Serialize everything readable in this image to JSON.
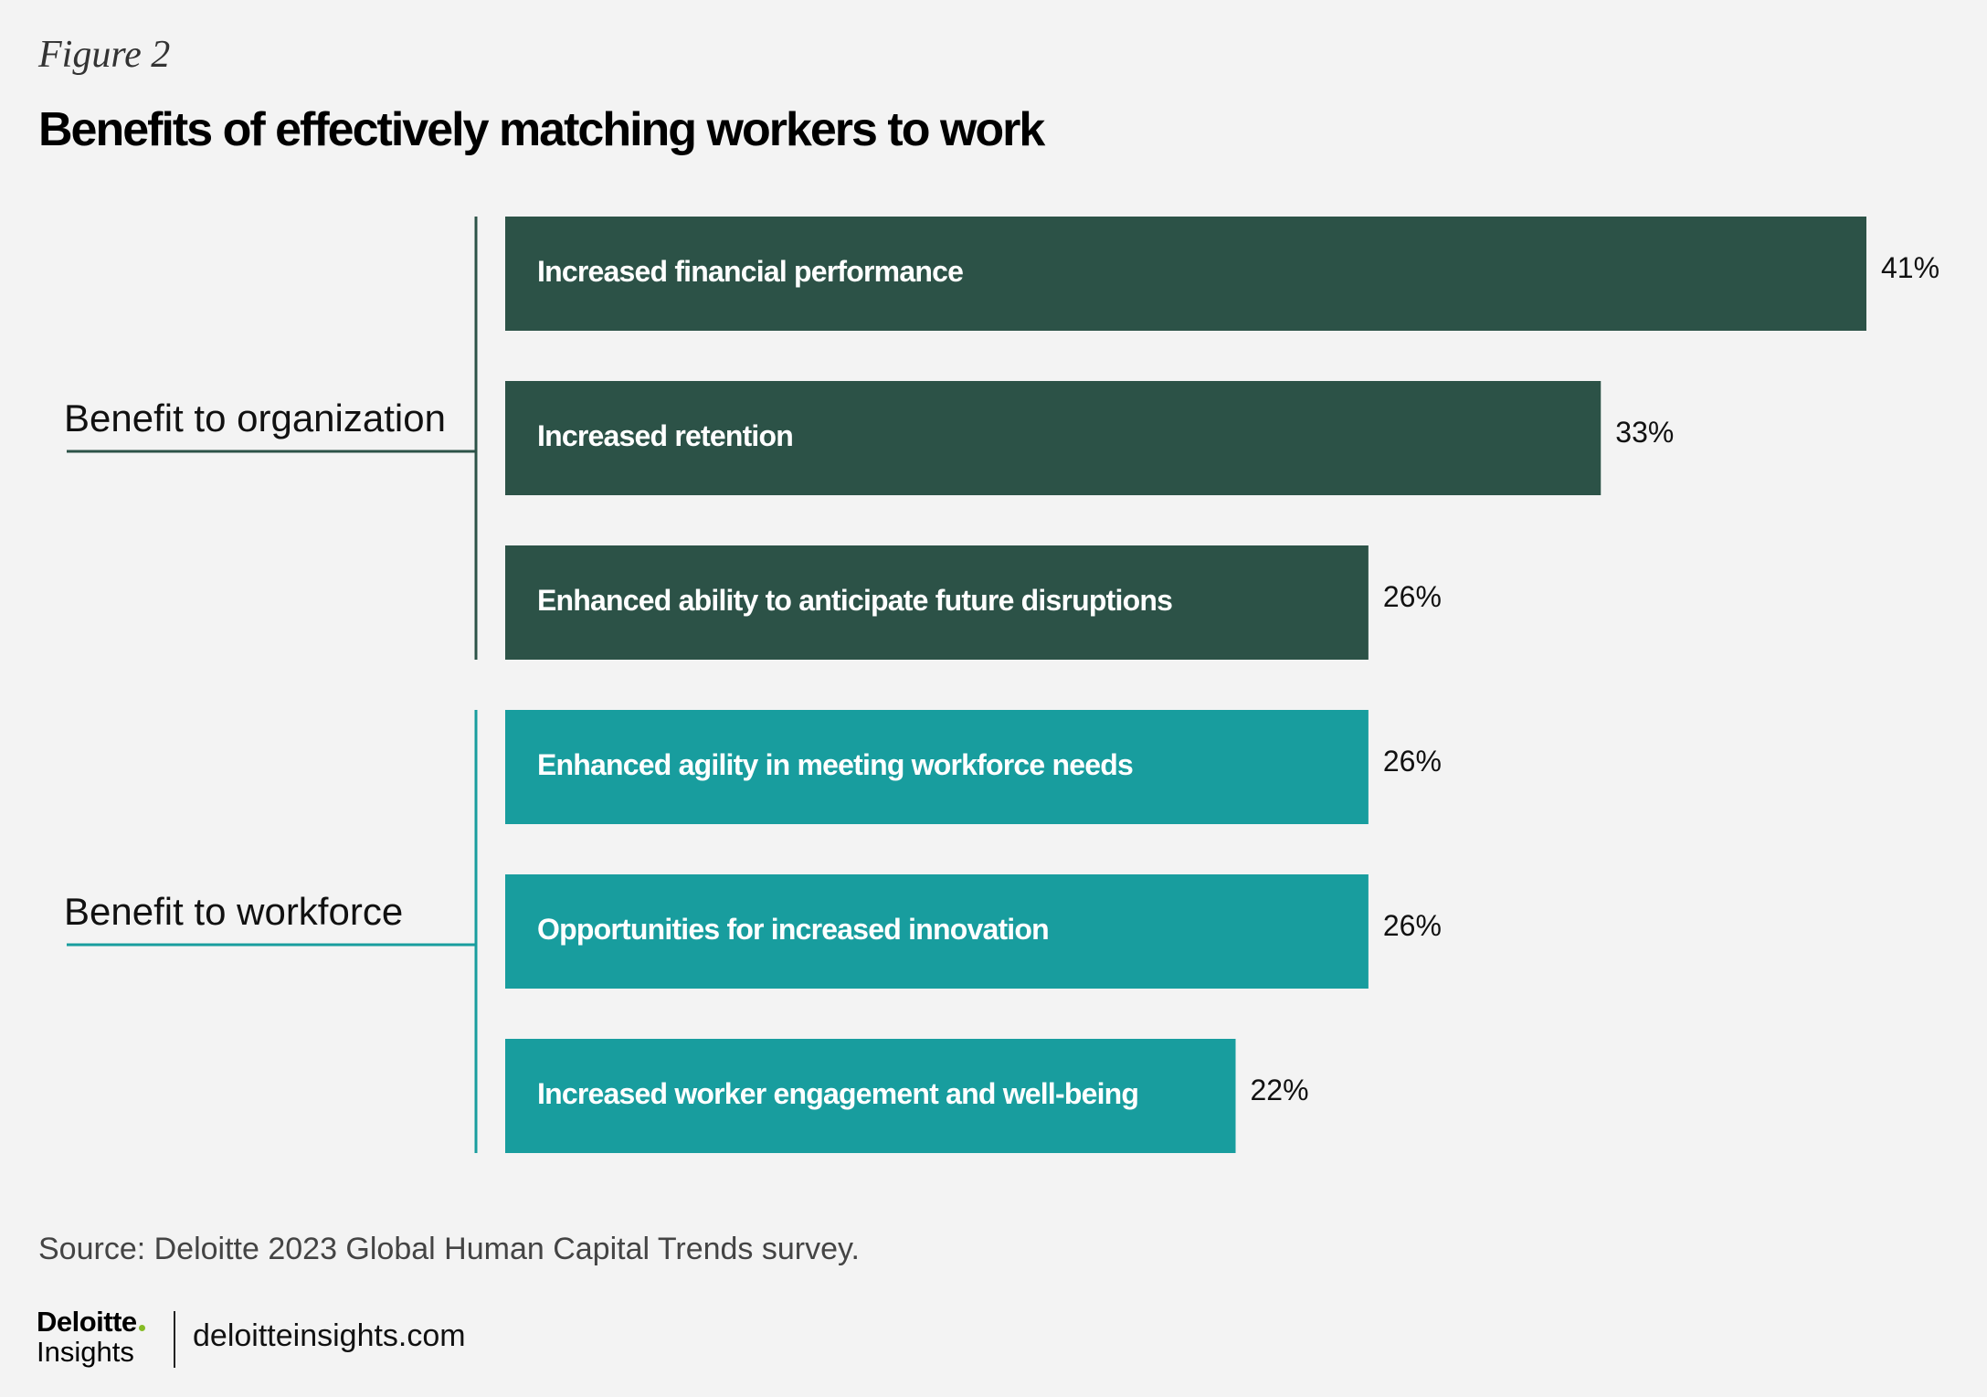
{
  "figure_label": "Figure 2",
  "title": "Benefits of effectively matching workers to work",
  "chart_data": {
    "type": "bar",
    "orientation": "horizontal",
    "title": "Benefits of effectively matching workers to work",
    "xlim": [
      0,
      41
    ],
    "value_suffix": "%",
    "groups": [
      {
        "name": "Benefit to organization",
        "color": "#2c5247",
        "bars": [
          {
            "label": "Increased financial performance",
            "value": 41
          },
          {
            "label": "Increased retention",
            "value": 33
          },
          {
            "label": "Enhanced ability to anticipate future disruptions",
            "value": 26
          }
        ]
      },
      {
        "name": "Benefit to workforce",
        "color": "#189d9e",
        "bars": [
          {
            "label": "Enhanced agility in meeting workforce needs",
            "value": 26
          },
          {
            "label": "Opportunities for increased innovation",
            "value": 26
          },
          {
            "label": "Increased worker engagement and well-being",
            "value": 22
          }
        ]
      }
    ]
  },
  "source": "Source: Deloitte 2023 Global Human Capital Trends survey.",
  "brand": {
    "name": "Deloitte",
    "sub": "Insights",
    "dot_color": "#86bc25",
    "site": "deloitteinsights.com"
  }
}
